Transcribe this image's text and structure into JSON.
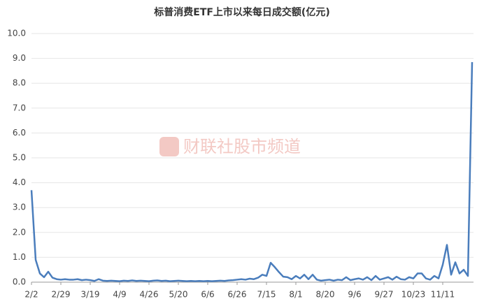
{
  "chart_data": {
    "type": "line",
    "title": "标普消费ETF上市以来每日成交额(亿元)",
    "watermark": "财联社股市频道",
    "color": "#4a7dbc",
    "categories": [
      "2/2",
      null,
      null,
      null,
      null,
      null,
      null,
      "2/29",
      null,
      null,
      null,
      null,
      null,
      null,
      "3/19",
      null,
      null,
      null,
      null,
      null,
      null,
      "4/9",
      null,
      null,
      null,
      null,
      null,
      null,
      "4/26",
      null,
      null,
      null,
      null,
      null,
      null,
      "5/20",
      null,
      null,
      null,
      null,
      null,
      null,
      "6/6",
      null,
      null,
      null,
      null,
      null,
      null,
      "6/26",
      null,
      null,
      null,
      null,
      null,
      null,
      "7/15",
      null,
      null,
      null,
      null,
      null,
      null,
      "8/1",
      null,
      null,
      null,
      null,
      null,
      null,
      "8/20",
      null,
      null,
      null,
      null,
      null,
      null,
      "9/6",
      null,
      null,
      null,
      null,
      null,
      null,
      "9/27",
      null,
      null,
      null,
      null,
      null,
      null,
      "10/23",
      null,
      null,
      null,
      null,
      null,
      null,
      "11/11",
      null,
      null,
      null,
      null,
      null,
      null,
      null
    ],
    "values": [
      3.7,
      0.9,
      0.35,
      0.2,
      0.42,
      0.18,
      0.12,
      0.1,
      0.12,
      0.1,
      0.1,
      0.12,
      0.08,
      0.1,
      0.08,
      0.05,
      0.12,
      0.06,
      0.05,
      0.06,
      0.05,
      0.04,
      0.06,
      0.05,
      0.07,
      0.05,
      0.06,
      0.05,
      0.04,
      0.06,
      0.07,
      0.05,
      0.06,
      0.04,
      0.05,
      0.06,
      0.05,
      0.04,
      0.05,
      0.04,
      0.05,
      0.04,
      0.05,
      0.04,
      0.05,
      0.06,
      0.05,
      0.07,
      0.08,
      0.1,
      0.12,
      0.1,
      0.14,
      0.12,
      0.18,
      0.3,
      0.25,
      0.78,
      0.6,
      0.4,
      0.22,
      0.2,
      0.12,
      0.25,
      0.15,
      0.3,
      0.12,
      0.3,
      0.1,
      0.06,
      0.08,
      0.1,
      0.06,
      0.1,
      0.08,
      0.2,
      0.08,
      0.12,
      0.15,
      0.1,
      0.2,
      0.08,
      0.25,
      0.1,
      0.15,
      0.2,
      0.1,
      0.22,
      0.12,
      0.1,
      0.2,
      0.15,
      0.35,
      0.35,
      0.15,
      0.1,
      0.25,
      0.15,
      0.7,
      1.5,
      0.3,
      0.8,
      0.35,
      0.5,
      0.25,
      8.85
    ],
    "ylim": [
      0,
      10
    ],
    "yticks": [
      {
        "value": 0,
        "label": "0.0"
      },
      {
        "value": 1,
        "label": "1.0"
      },
      {
        "value": 2,
        "label": "2.0"
      },
      {
        "value": 3,
        "label": "3.0"
      },
      {
        "value": 4,
        "label": "4.0"
      },
      {
        "value": 5,
        "label": "5.0"
      },
      {
        "value": 6,
        "label": "6.0"
      },
      {
        "value": 7,
        "label": "7.0"
      },
      {
        "value": 8,
        "label": "8.0"
      },
      {
        "value": 9,
        "label": "9.0"
      },
      {
        "value": 10,
        "label": "10.0"
      }
    ],
    "grid": true
  }
}
